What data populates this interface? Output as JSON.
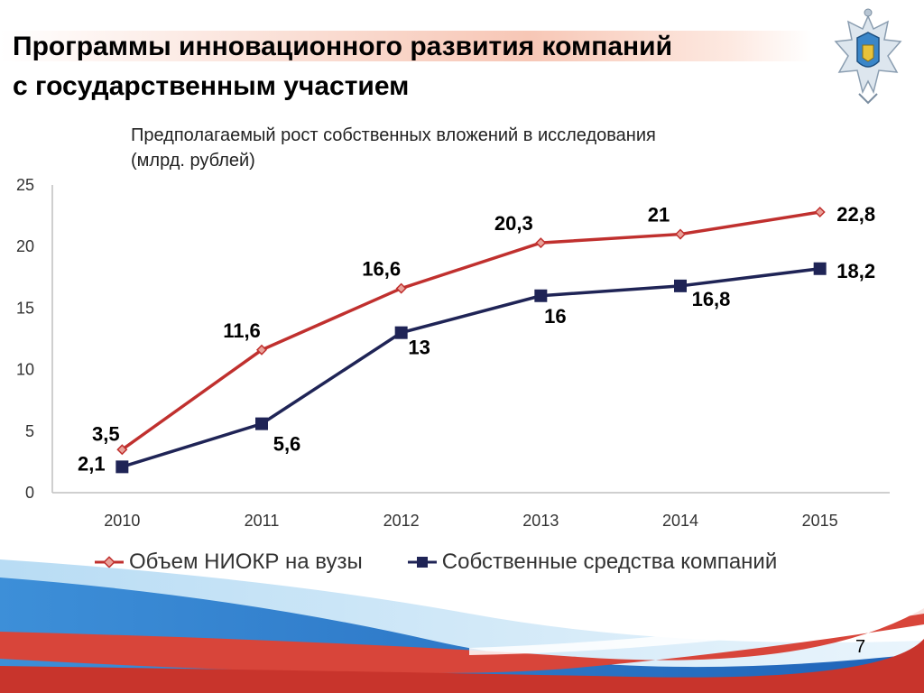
{
  "slide": {
    "title_lines": [
      "Программы инновационного развития компаний",
      "с государственным участием"
    ],
    "page_number": "7"
  },
  "chart_data": {
    "type": "line",
    "title_lines": [
      "Предполагаемый рост собственных вложений в исследования",
      "(млрд. рублей)"
    ],
    "categories": [
      "2010",
      "2011",
      "2012",
      "2013",
      "2014",
      "2015"
    ],
    "ylim": [
      0,
      25
    ],
    "yticks": [
      "0",
      "5",
      "10",
      "15",
      "20",
      "25"
    ],
    "grid": false,
    "legend_position": "bottom",
    "series": [
      {
        "name": "Объем НИОКР на вузы",
        "values": [
          3.5,
          11.6,
          16.6,
          20.3,
          21,
          22.8
        ],
        "labels": [
          "3,5",
          "11,6",
          "16,6",
          "20,3",
          "21",
          "22,8"
        ],
        "color": "#c0302e",
        "marker": "diamond"
      },
      {
        "name": "Собственные средства компаний",
        "values": [
          2.1,
          5.6,
          13,
          16,
          16.8,
          18.2
        ],
        "labels": [
          "2,1",
          "5,6",
          "13",
          "16",
          "16,8",
          "18,2"
        ],
        "color": "#1f2456",
        "marker": "square"
      }
    ]
  }
}
